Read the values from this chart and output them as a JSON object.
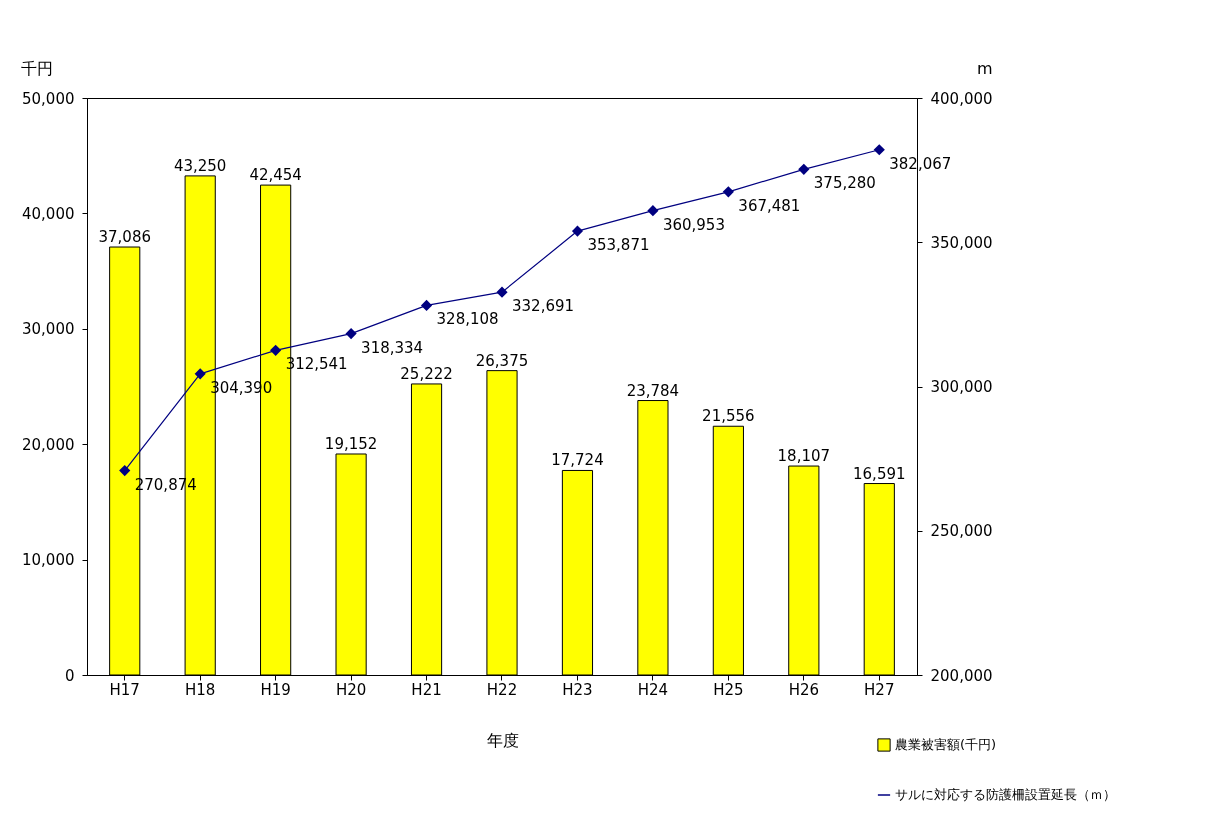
{
  "chart_data": {
    "type": "bar",
    "xlabel": "年度",
    "ylabel": "千円",
    "y2label": "m",
    "categories": [
      "H17",
      "H18",
      "H19",
      "H20",
      "H21",
      "H22",
      "H23",
      "H24",
      "H25",
      "H26",
      "H27"
    ],
    "series": [
      {
        "name": "農業被害額(千円)",
        "color": "#ffff00",
        "values": [
          37086,
          43250,
          42454,
          19152,
          25222,
          26375,
          17724,
          23784,
          21556,
          18107,
          16591
        ],
        "value_labels": [
          "37,086",
          "43,250",
          "42,454",
          "19,152",
          "25,222",
          "26,375",
          "17,724",
          "23,784",
          "21,556",
          "18,107",
          "16,591"
        ]
      },
      {
        "name": "サルに対応する防護柵設置延長（ｍ）",
        "type": "line",
        "axis": "y2",
        "color": "#000080",
        "marker": "diamond",
        "values": [
          270874,
          304390,
          312541,
          318334,
          328108,
          332691,
          353871,
          360953,
          367481,
          375280,
          382067
        ],
        "value_labels": [
          "270,874",
          "304,390",
          "312,541",
          "318,334",
          "328,108",
          "332,691",
          "353,871",
          "360,953",
          "367,481",
          "375,280",
          "382,067"
        ]
      }
    ],
    "ylim": [
      0,
      50000
    ],
    "yticks": [
      0,
      {
        "value": 10000,
        "label": "10,000"
      },
      {
        "value": 20000,
        "label": "20,000"
      },
      {
        "value": 30000,
        "label": "30,000"
      },
      {
        "value": 40000,
        "label": "40,000"
      },
      {
        "value": 50000,
        "label": "50,000"
      }
    ],
    "y2lim": [
      200000,
      400000
    ],
    "y2ticks": [
      {
        "value": 200000,
        "label": "200,000"
      },
      {
        "value": 250000,
        "label": "250,000"
      },
      {
        "value": 300000,
        "label": "300,000"
      },
      {
        "value": 350000,
        "label": "350,000"
      },
      {
        "value": 400000,
        "label": "400,000"
      }
    ],
    "grid": false,
    "legend": "bottom right"
  }
}
